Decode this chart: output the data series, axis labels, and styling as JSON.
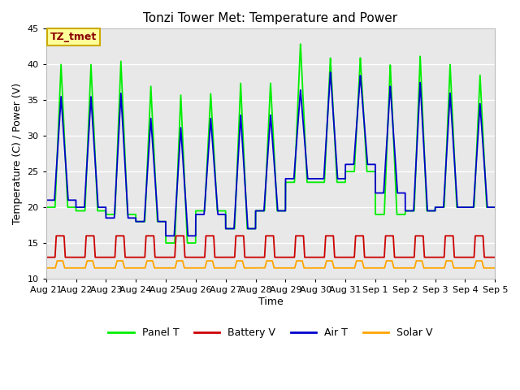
{
  "title": "Tonzi Tower Met: Temperature and Power",
  "xlabel": "Time",
  "ylabel": "Temperature (C) / Power (V)",
  "ylim": [
    10,
    45
  ],
  "annotation_text": "TZ_tmet",
  "annotation_color": "#8B0000",
  "annotation_bg": "#FFFF99",
  "annotation_border": "#CCAA00",
  "colors": {
    "panel_t": "#00EE00",
    "battery_v": "#CC0000",
    "air_t": "#0000CC",
    "solar_v": "#FFA500"
  },
  "legend_labels": [
    "Panel T",
    "Battery V",
    "Air T",
    "Solar V"
  ],
  "num_days": 15,
  "background_color": "#E8E8E8",
  "grid_color": "white",
  "tick_labels": [
    "Aug 21",
    "Aug 22",
    "Aug 23",
    "Aug 24",
    "Aug 25",
    "Aug 26",
    "Aug 27",
    "Aug 28",
    "Aug 29",
    "Aug 30",
    "Aug 31",
    "Sep 1",
    "Sep 2",
    "Sep 3",
    "Sep 4",
    "Sep 5"
  ],
  "panel_peaks": [
    40,
    40,
    40.5,
    37,
    35.8,
    36,
    37.5,
    37.5,
    43,
    41,
    41,
    40,
    41.2,
    40,
    38.5
  ],
  "panel_mins": [
    20,
    19.5,
    19,
    18,
    15,
    19.5,
    17,
    19.5,
    23.5,
    23.5,
    25,
    19,
    19.5,
    20,
    20
  ],
  "air_peaks": [
    35.5,
    35.5,
    36,
    32.5,
    31.2,
    32.5,
    33,
    33,
    36.5,
    39,
    38.5,
    37,
    37.5,
    36,
    34.5
  ],
  "air_mins": [
    21,
    20,
    18.5,
    18,
    16,
    19,
    17,
    19.5,
    24,
    24,
    26,
    22,
    19.5,
    20,
    20
  ],
  "batt_base": 13.0,
  "batt_peak": 16.0,
  "solar_base": 11.5,
  "solar_peak": 12.5,
  "pts_per_day": 288
}
